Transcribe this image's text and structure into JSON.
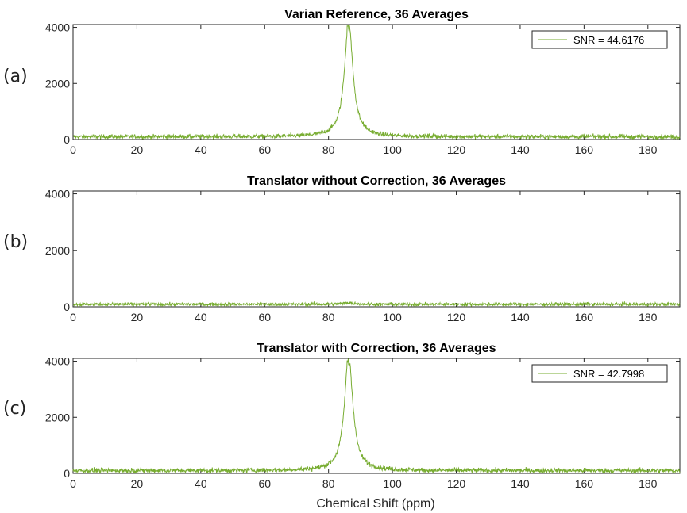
{
  "figure": {
    "xlabel": "Chemical Shift (ppm)"
  },
  "chart_data": [
    {
      "type": "line",
      "panel_label": "(a)",
      "title": "Varian Reference, 36 Averages",
      "xlabel": "",
      "ylabel": "",
      "xlim": [
        0,
        190
      ],
      "ylim": [
        0,
        4100
      ],
      "x_ticks": [
        0,
        20,
        40,
        60,
        80,
        100,
        120,
        140,
        160,
        180
      ],
      "y_ticks": [
        0,
        2000,
        4000
      ],
      "grid": false,
      "legend": {
        "position": "top-right",
        "entries": [
          "SNR = 44.6176"
        ]
      },
      "series": [
        {
          "name": "SNR = 44.6176",
          "color": "#77ac30",
          "peak_center": 86.3,
          "peak_height": 4100,
          "peak_hwhm": 1.6,
          "baseline": 100,
          "noise": 55
        }
      ]
    },
    {
      "type": "line",
      "panel_label": "(b)",
      "title": "Translator without Correction, 36 Averages",
      "xlabel": "",
      "ylabel": "",
      "xlim": [
        0,
        190
      ],
      "ylim": [
        0,
        4100
      ],
      "x_ticks": [
        0,
        20,
        40,
        60,
        80,
        100,
        120,
        140,
        160,
        180
      ],
      "y_ticks": [
        0,
        2000,
        4000
      ],
      "grid": false,
      "legend": null,
      "series": [
        {
          "name": "",
          "color": "#77ac30",
          "peak_center": 86.3,
          "peak_height": 60,
          "peak_hwhm": 2.0,
          "baseline": 90,
          "noise": 40
        }
      ]
    },
    {
      "type": "line",
      "panel_label": "(c)",
      "title": "Translator with Correction, 36 Averages",
      "xlabel": "Chemical Shift (ppm)",
      "ylabel": "",
      "xlim": [
        0,
        190
      ],
      "ylim": [
        0,
        4100
      ],
      "x_ticks": [
        0,
        20,
        40,
        60,
        80,
        100,
        120,
        140,
        160,
        180
      ],
      "y_ticks": [
        0,
        2000,
        4000
      ],
      "grid": false,
      "legend": {
        "position": "top-right",
        "entries": [
          "SNR = 42.7998"
        ]
      },
      "series": [
        {
          "name": "SNR = 42.7998",
          "color": "#77ac30",
          "peak_center": 86.3,
          "peak_height": 4100,
          "peak_hwhm": 1.6,
          "baseline": 100,
          "noise": 60
        }
      ]
    }
  ]
}
